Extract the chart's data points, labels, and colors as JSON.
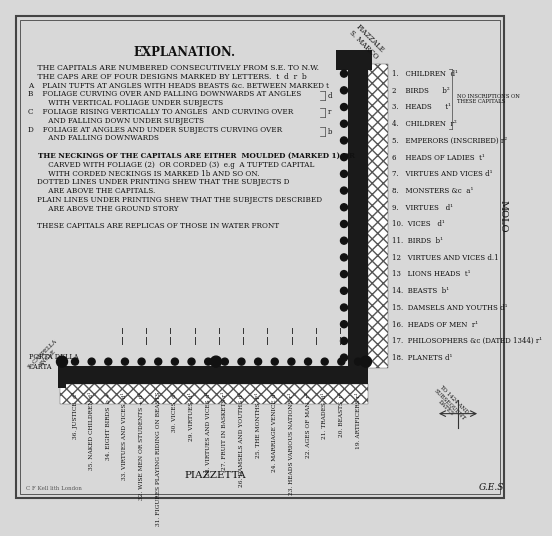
{
  "title": "EXPLANATION.",
  "right_labels": [
    "1.   CHILDREN  d¹",
    "2    BIRDS      b²",
    "3.   HEADS      t¹",
    "4.   CHILDREN  r²",
    "5.   EMPERORS (INSCRIBED) r²",
    "6    HEADS OF LADIES  t¹",
    "7.   VIRTUES AND VICES d¹",
    "8.   MONSTERS &c  a¹",
    "9.   VIRTUES   d¹",
    "10.  VICES   d¹",
    "11.  BIRDS  b¹",
    "12   VIRTUES AND VICES d.1",
    "13   LIONS HEADS  t¹",
    "14.  BEASTS  b¹",
    "15.  DAMSELS AND YOUTHS d¹",
    "16.  HEADS OF MEN  r¹",
    "17.  PHILOSOPHERS &c (DATED 1344) r¹",
    "18.  PLANETS d¹"
  ],
  "bottom_labels": [
    "19. ARTIFICERS r¹",
    "20. BEASTS  r¹",
    "21. TRADES  d¹",
    "22. AGES OF MAN  r¹",
    "23. HEADS VARIOUS NATIONS r¹",
    "24. MARRIAGE VENICE d¹",
    "25. THE MONTHS  F¹",
    "26. DAMSELS AND YOUTHS d¹",
    "27. FRUIT IN BASKETS r¹",
    "28. VIRTUES AND VICES d¹",
    "29. VIRTUES  d¹",
    "30. VICES  d¹",
    "31. FIGURES PLAYING RIDING ON BEASTS",
    "32. WISE MEN OR STUDENTS + d¹",
    "33. VIRTUES AND VICES.  d¹",
    "34. EIGHT BIRDS  b +",
    "35. NAKED CHILDREN d¹",
    "36. JUSTICE  d¹"
  ],
  "bg_color": "#d8d8d8",
  "text_color": "#111111",
  "wall_color": "#1a1a1a"
}
